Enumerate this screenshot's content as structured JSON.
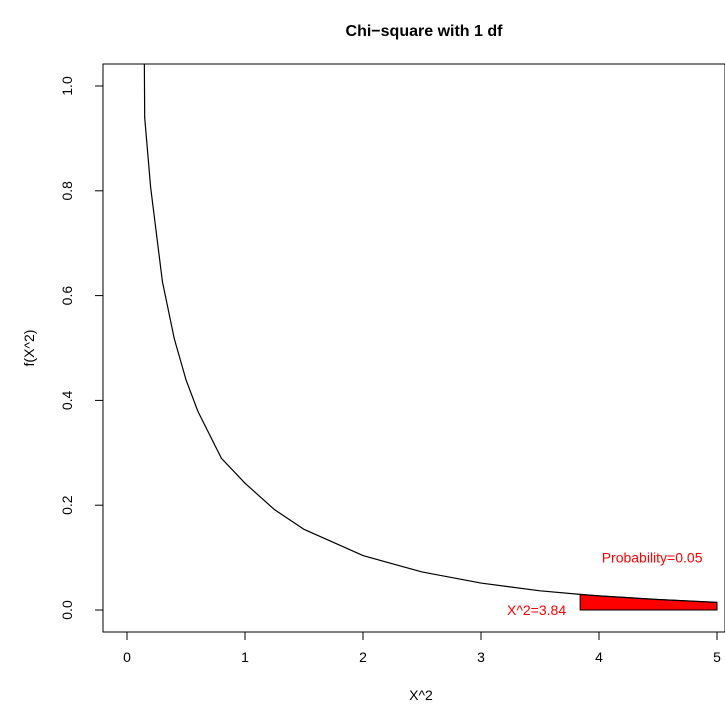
{
  "chart_data": {
    "type": "line",
    "title": "Chi−square with 1 df",
    "xlabel": "X^2",
    "ylabel": "f(X^2)",
    "xlim": [
      0,
      5
    ],
    "ylim": [
      0,
      1.0
    ],
    "x_ticks": [
      0,
      1,
      2,
      3,
      4,
      5
    ],
    "x_tick_labels": [
      "0",
      "1",
      "2",
      "3",
      "4",
      "5"
    ],
    "y_ticks": [
      0.0,
      0.2,
      0.4,
      0.6,
      0.8,
      1.0
    ],
    "y_tick_labels": [
      "0.0",
      "0.2",
      "0.4",
      "0.6",
      "0.8",
      "1.0"
    ],
    "grid": false,
    "series": [
      {
        "x": [
          0.15,
          0.2,
          0.3,
          0.4,
          0.5,
          0.6,
          0.8,
          1.0,
          1.25,
          1.5,
          2.0,
          2.5,
          3.0,
          3.5,
          3.84,
          4.0,
          4.5,
          5.0
        ],
        "y": [
          0.9397,
          0.8072,
          0.6269,
          0.5184,
          0.4394,
          0.3796,
          0.2896,
          0.242,
          0.1915,
          0.1539,
          0.1038,
          0.0727,
          0.0514,
          0.0366,
          0.0298,
          0.027,
          0.02,
          0.0146
        ]
      }
    ],
    "shaded_region": {
      "x_from": 3.84,
      "x_to": 5.0,
      "color": "#ff0000"
    },
    "annotations": [
      {
        "text": "X^2=3.84",
        "x": 3.84,
        "y": 0.0,
        "color": "#ff0000"
      },
      {
        "text": "Probability=0.05",
        "x": 4.45,
        "y": 0.1,
        "color": "#ff0000"
      }
    ],
    "line_color": "#000000"
  }
}
